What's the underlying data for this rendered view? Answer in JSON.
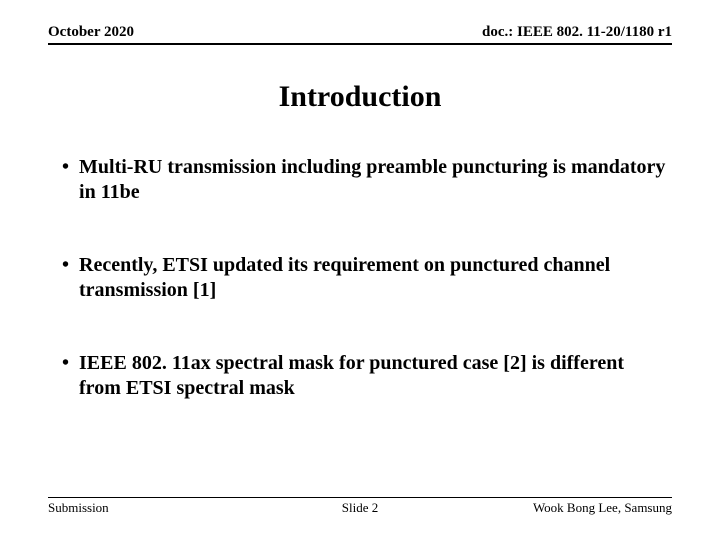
{
  "header": {
    "date": "October 2020",
    "docref": "doc.: IEEE 802. 11-20/1180 r1"
  },
  "title": "Introduction",
  "bullets": [
    "Multi-RU transmission including preamble puncturing is mandatory in 11be",
    "Recently, ETSI updated its requirement on punctured channel transmission [1]",
    "IEEE 802. 11ax spectral mask for punctured case [2] is different from ETSI spectral mask"
  ],
  "footer": {
    "left": "Submission",
    "center": "Slide 2",
    "right": "Wook Bong Lee, Samsung"
  },
  "colors": {
    "background": "#ffffff",
    "text": "#000000",
    "rule": "#000000"
  },
  "typography": {
    "header_fontsize": 15,
    "title_fontsize": 30,
    "bullet_fontsize": 20,
    "footer_fontsize": 13,
    "font_family": "Times New Roman"
  }
}
